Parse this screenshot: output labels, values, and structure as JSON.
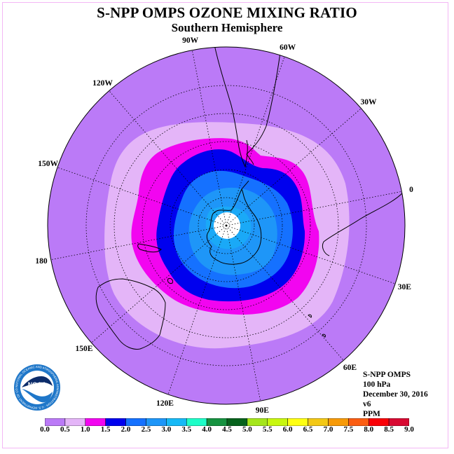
{
  "header": {
    "title": "S-NPP OMPS OZONE MIXING RATIO",
    "subtitle": "Southern Hemisphere"
  },
  "map": {
    "projection": "south polar stereographic",
    "longitude_labels": [
      {
        "text": "90W",
        "lon": -90
      },
      {
        "text": "60W",
        "lon": -60
      },
      {
        "text": "30W",
        "lon": -30
      },
      {
        "text": "0",
        "lon": 0
      },
      {
        "text": "30E",
        "lon": 30
      },
      {
        "text": "60E",
        "lon": 60
      },
      {
        "text": "90E",
        "lon": 90
      },
      {
        "text": "120E",
        "lon": 120
      },
      {
        "text": "150E",
        "lon": 150
      },
      {
        "text": "180",
        "lon": 180
      },
      {
        "text": "150W",
        "lon": -150
      },
      {
        "text": "120W",
        "lon": -120
      }
    ],
    "field_levels": [
      {
        "level": "0.0-0.5",
        "color": "#bb7af7"
      },
      {
        "level": "0.5-1.0",
        "color": "#e4b5f8"
      },
      {
        "level": "1.0-1.5",
        "color": "#f205f0"
      },
      {
        "level": "1.5-2.0",
        "color": "#0000ee"
      },
      {
        "level": "2.0-2.5",
        "color": "#1571ff"
      },
      {
        "level": "2.5-3.0",
        "color": "#1e96f8"
      },
      {
        "level": "no data",
        "color": "#ffffff"
      }
    ]
  },
  "info": {
    "instrument": "S-NPP OMPS",
    "pressure": "100 hPa",
    "date": "December 30, 2016",
    "version": "v6",
    "units": "PPM"
  },
  "logo": {
    "text": "NOAA",
    "ring_text": "NATIONAL OCEANIC AND ATMOSPHERIC ADMINISTRATION · U.S. DEPARTMENT OF COMMERCE"
  },
  "colorbar": {
    "ticks": [
      "0.0",
      "0.5",
      "1.0",
      "1.5",
      "2.0",
      "2.5",
      "3.0",
      "3.5",
      "4.0",
      "4.5",
      "5.0",
      "5.5",
      "6.0",
      "6.5",
      "7.0",
      "7.5",
      "8.0",
      "8.5",
      "9.0"
    ],
    "colors": [
      "#bb7af7",
      "#e4b5f8",
      "#f205f0",
      "#0000ee",
      "#1571ff",
      "#1e96f8",
      "#17b9f6",
      "#1efec8",
      "#169240",
      "#06621c",
      "#a5e61b",
      "#c8f70f",
      "#ffff12",
      "#f3c815",
      "#f79a08",
      "#fb5d12",
      "#f90007",
      "#d80a32"
    ]
  }
}
